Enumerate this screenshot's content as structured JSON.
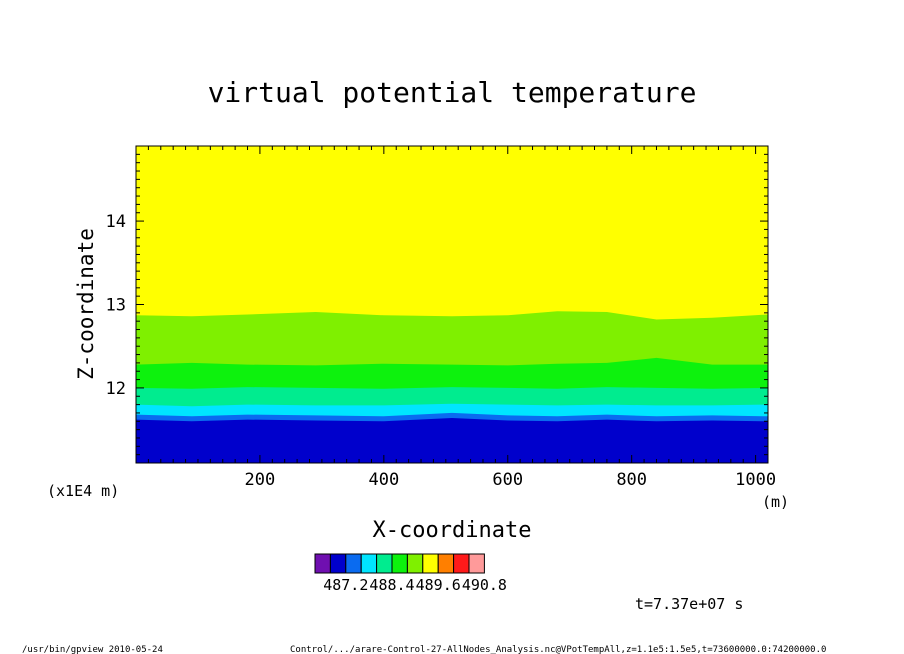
{
  "chart_data": {
    "type": "heatmap",
    "title": "virtual potential temperature",
    "xlabel": "X-coordinate",
    "ylabel": "Z-coordinate",
    "x_unit": "(m)",
    "y_scale_note": "(x1E4 m)",
    "xlim": [
      0,
      1020
    ],
    "ylim": [
      11.1,
      14.9
    ],
    "x_ticks": [
      200,
      400,
      600,
      800,
      1000
    ],
    "y_ticks": [
      12,
      13,
      14
    ],
    "x_tick_labels": [
      "200",
      "400",
      "600",
      "800",
      "1000"
    ],
    "y_tick_labels": [
      "12",
      "13",
      "14"
    ],
    "colorbar": {
      "colors": [
        "#6f0fb0",
        "#0000cc",
        "#0a6bf0",
        "#00e5ff",
        "#00ec8f",
        "#0df20d",
        "#7ff000",
        "#ffff00",
        "#ff7f00",
        "#ff1a1a",
        "#ff9a9a"
      ],
      "labels": [
        "487.2",
        "488.4",
        "489.6",
        "490.8"
      ],
      "label_after_box": [
        1,
        4,
        7,
        10
      ]
    },
    "bands": [
      {
        "color": "#0000cc",
        "z_top": [
          11.62,
          11.6,
          11.62,
          11.61,
          11.6,
          11.64,
          11.61,
          11.6,
          11.62,
          11.6,
          11.61,
          11.6
        ]
      },
      {
        "color": "#0a6bf0",
        "z_top": [
          11.68,
          11.66,
          11.68,
          11.67,
          11.66,
          11.7,
          11.67,
          11.66,
          11.68,
          11.66,
          11.67,
          11.66
        ]
      },
      {
        "color": "#00e5ff",
        "z_top": [
          11.8,
          11.78,
          11.8,
          11.79,
          11.79,
          11.81,
          11.8,
          11.79,
          11.8,
          11.79,
          11.79,
          11.8
        ]
      },
      {
        "color": "#00ec8f",
        "z_top": [
          12.0,
          11.99,
          12.01,
          12.0,
          11.99,
          12.01,
          12.0,
          11.99,
          12.01,
          12.0,
          11.99,
          12.0
        ]
      },
      {
        "color": "#0df20d",
        "z_top": [
          12.28,
          12.3,
          12.28,
          12.27,
          12.29,
          12.28,
          12.27,
          12.29,
          12.3,
          12.36,
          12.28,
          12.28
        ]
      },
      {
        "color": "#7ff000",
        "z_top": [
          12.87,
          12.86,
          12.88,
          12.91,
          12.87,
          12.86,
          12.87,
          12.92,
          12.91,
          12.82,
          12.84,
          12.88
        ]
      },
      {
        "color": "#ffff00",
        "z_top": [
          14.9,
          14.9,
          14.9,
          14.9,
          14.9,
          14.9,
          14.9,
          14.9,
          14.9,
          14.9,
          14.9,
          14.9
        ]
      }
    ],
    "band_x": [
      0,
      90,
      180,
      290,
      400,
      510,
      600,
      680,
      760,
      840,
      930,
      1020
    ],
    "base_color": "#0000cc",
    "time_label": "t=7.37e+07  s"
  },
  "footer": {
    "left": "/usr/bin/gpview  2010-05-24",
    "right": "Control/.../arare-Control-27-AllNodes_Analysis.nc@VPotTempAll,z=1.1e5:1.5e5,t=73600000.0:74200000.0"
  }
}
